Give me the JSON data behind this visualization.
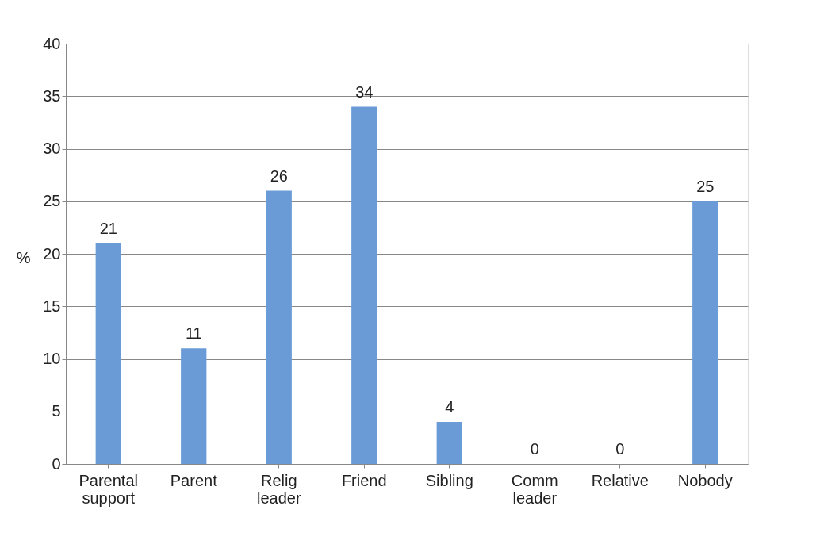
{
  "chart_data": {
    "type": "bar",
    "ylabel": "%",
    "categories": [
      "Parental support",
      "Parent",
      "Relig leader",
      "Friend",
      "Sibling",
      "Comm leader",
      "Relative",
      "Nobody"
    ],
    "values": [
      21,
      11,
      26,
      34,
      4,
      0,
      0,
      25
    ],
    "color": "#6a9bd6",
    "ylim": [
      0,
      40
    ],
    "yticks": [
      0,
      5,
      10,
      15,
      20,
      25,
      30,
      35,
      40
    ],
    "grid": "y",
    "data_labels": true
  }
}
